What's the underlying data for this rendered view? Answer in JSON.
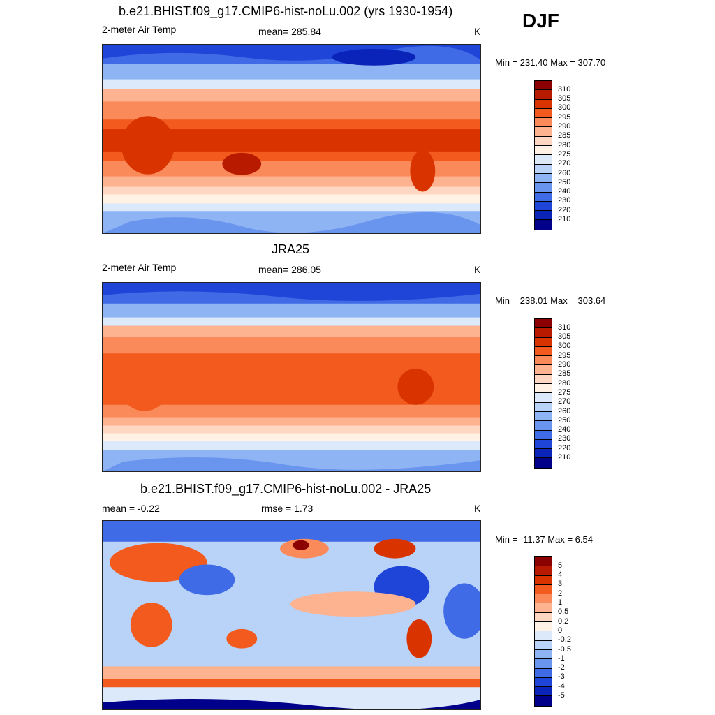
{
  "season": "DJF",
  "panels": [
    {
      "title": "b.e21.BHIST.f09_g17.CMIP6-hist-noLu.002 (yrs 1930-1954)",
      "left_label": "2-meter Air Temp",
      "center_label": "mean= 285.84",
      "right_label": "K",
      "minmax": "Min = 231.40 Max = 307.70",
      "colorbar": {
        "colors": [
          "#8b0000",
          "#b81a00",
          "#d93300",
          "#f25a1e",
          "#fa8a5a",
          "#fdb38f",
          "#fed7c2",
          "#fff1e4",
          "#dce9fb",
          "#b8d2f8",
          "#8fb4f3",
          "#6a95ee",
          "#3f6ce6",
          "#1f45d8",
          "#0a23b8",
          "#00008b"
        ],
        "labels": [
          "310",
          "305",
          "300",
          "295",
          "290",
          "285",
          "280",
          "275",
          "270",
          "260",
          "250",
          "240",
          "230",
          "220",
          "210"
        ]
      }
    },
    {
      "title": "JRA25",
      "left_label": "2-meter Air Temp",
      "center_label": "mean= 286.05",
      "right_label": "K",
      "minmax": "Min = 238.01 Max = 303.64",
      "colorbar": {
        "colors": [
          "#8b0000",
          "#b81a00",
          "#d93300",
          "#f25a1e",
          "#fa8a5a",
          "#fdb38f",
          "#fed7c2",
          "#fff1e4",
          "#dce9fb",
          "#b8d2f8",
          "#8fb4f3",
          "#6a95ee",
          "#3f6ce6",
          "#1f45d8",
          "#0a23b8",
          "#00008b"
        ],
        "labels": [
          "310",
          "305",
          "300",
          "295",
          "290",
          "285",
          "280",
          "275",
          "270",
          "260",
          "250",
          "240",
          "230",
          "220",
          "210"
        ]
      }
    },
    {
      "title": "b.e21.BHIST.f09_g17.CMIP6-hist-noLu.002 - JRA25",
      "left_label": "mean =  -0.22",
      "center_label": "rmse =   1.73",
      "right_label": "K",
      "minmax": "Min = -11.37 Max =   6.54",
      "colorbar": {
        "colors": [
          "#8b0000",
          "#b81a00",
          "#d93300",
          "#f25a1e",
          "#fa8a5a",
          "#fdb38f",
          "#fed7c2",
          "#fff1e4",
          "#dce9fb",
          "#b8d2f8",
          "#8fb4f3",
          "#6a95ee",
          "#3f6ce6",
          "#1f45d8",
          "#0a23b8",
          "#00008b"
        ],
        "labels": [
          "5",
          "4",
          "3",
          "2",
          "1",
          "0.5",
          "0.2",
          "0",
          "-0.2",
          "-0.5",
          "-1",
          "-2",
          "-3",
          "-4",
          "-5"
        ]
      }
    }
  ]
}
